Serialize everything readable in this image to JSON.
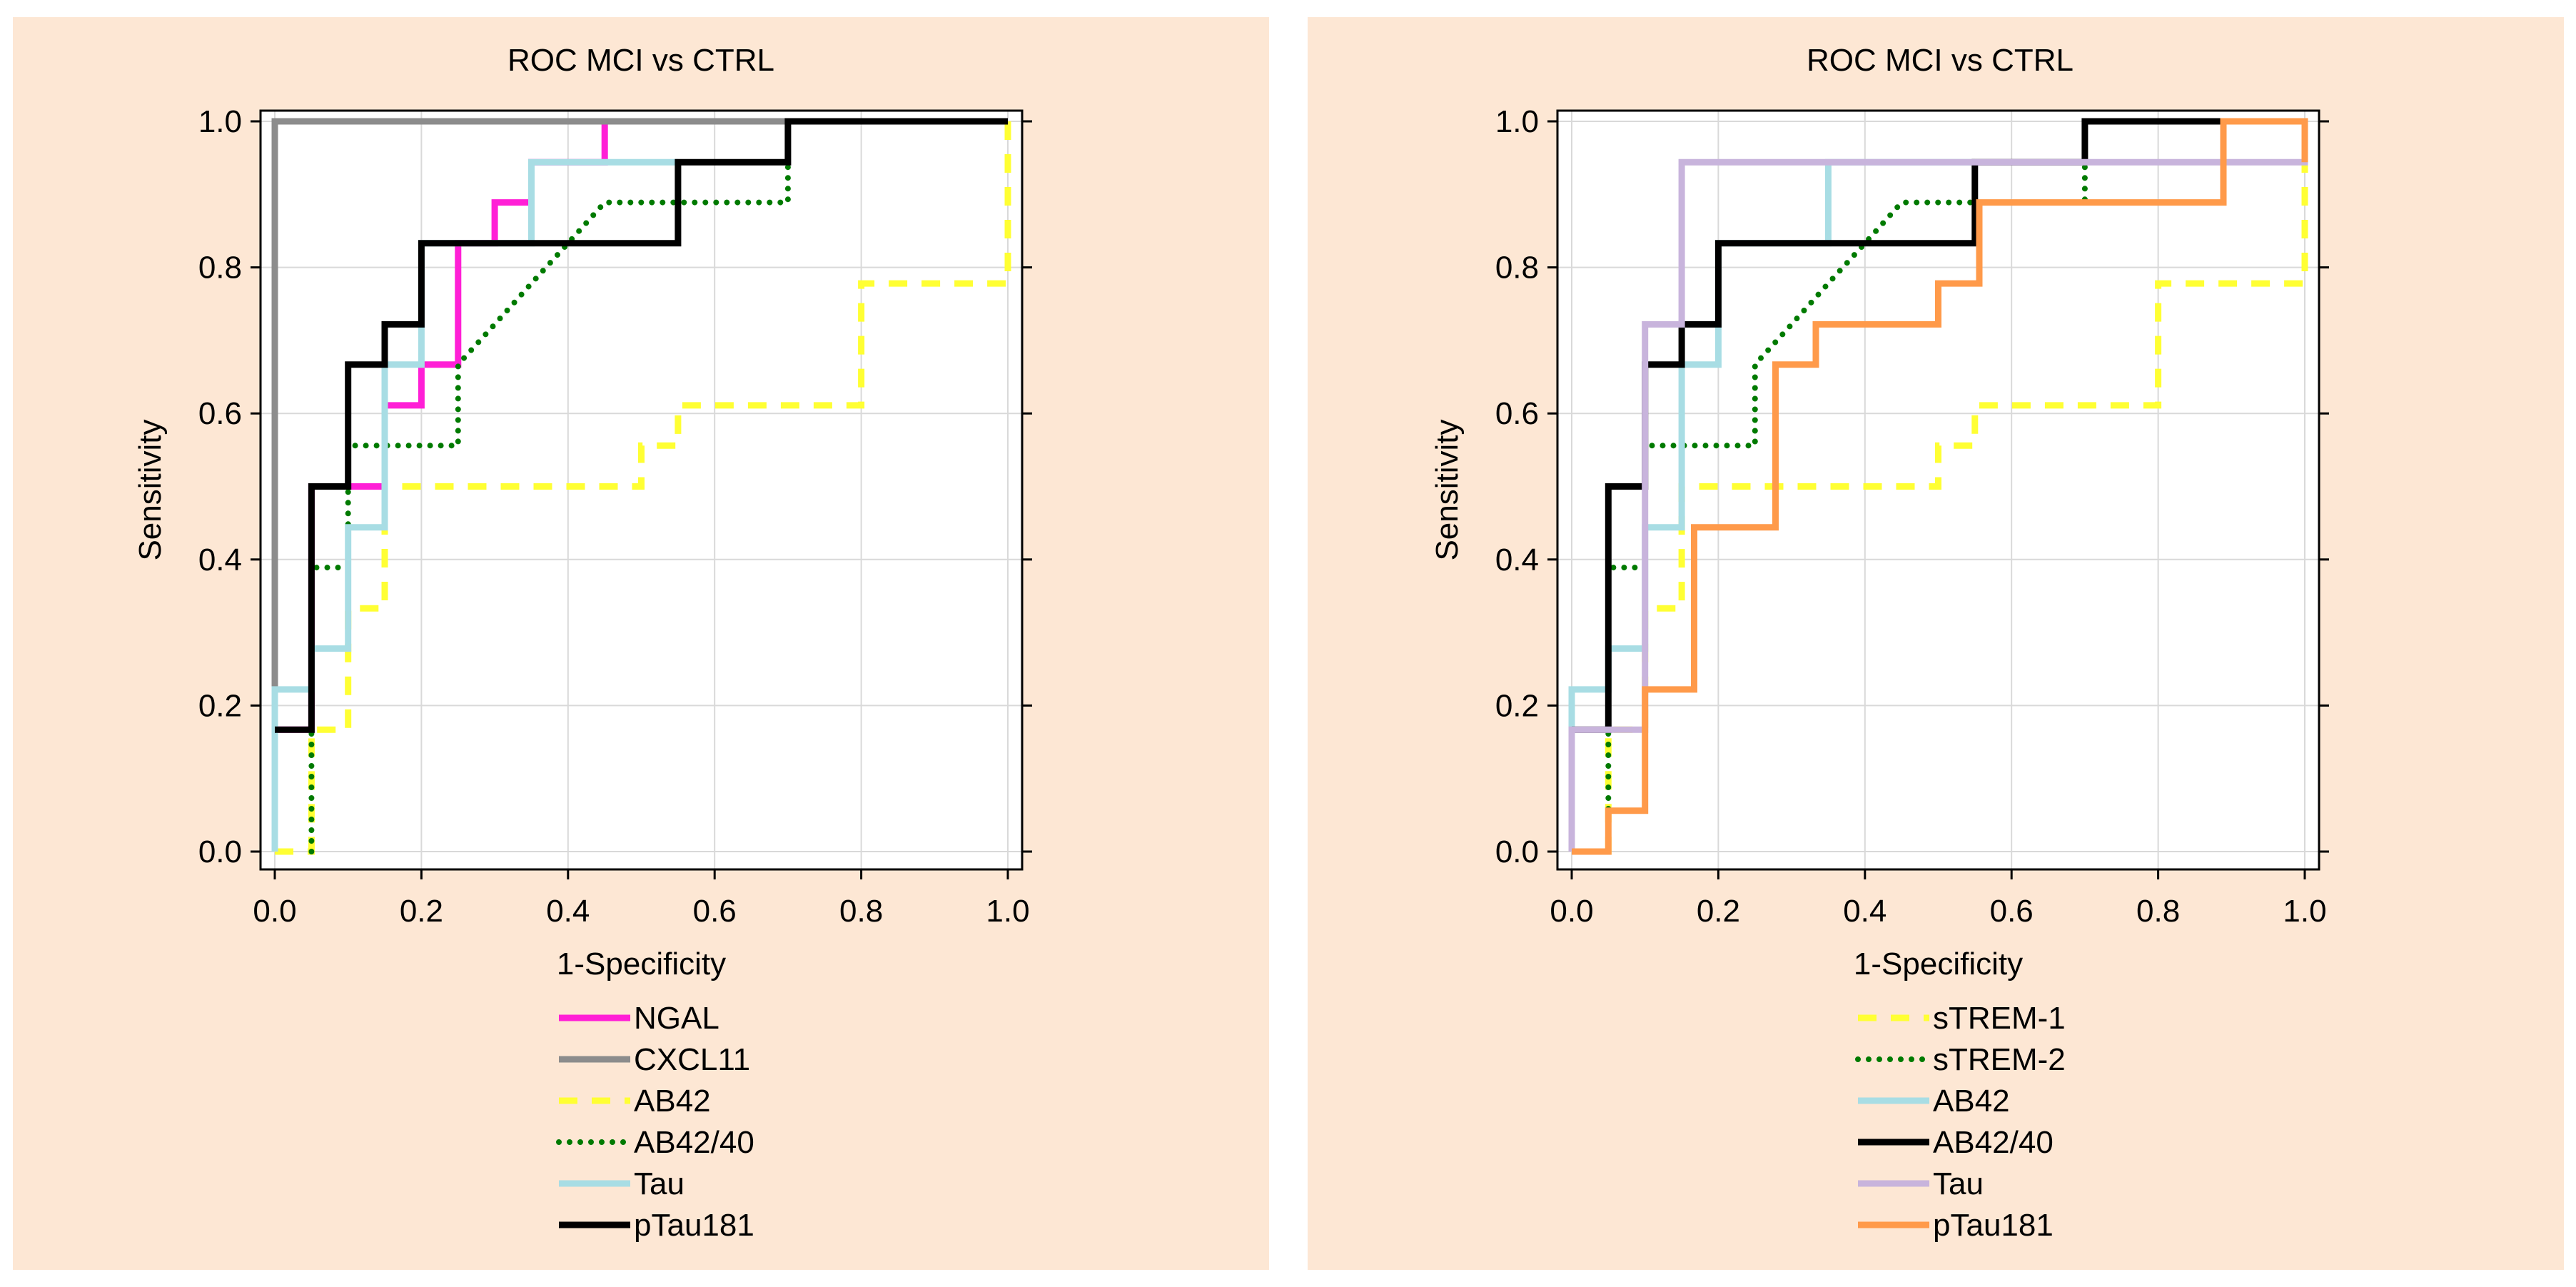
{
  "colors": {
    "panel_bg": "#fde7d4",
    "plot_bg": "#ffffff",
    "grid": "#d9d9d9",
    "frame": "#000000",
    "page_bg": "#ffffff"
  },
  "chart_data": [
    {
      "type": "line",
      "subtype": "roc-step",
      "title": "ROC MCI vs CTRL",
      "xlabel": "1-Specificity",
      "ylabel": "Sensitivity",
      "xlim": [
        0,
        1
      ],
      "ylim": [
        0,
        1
      ],
      "xticks": [
        "0.0",
        "0.2",
        "0.4",
        "0.6",
        "0.8",
        "1.0"
      ],
      "yticks": [
        "0.0",
        "0.2",
        "0.4",
        "0.6",
        "0.8",
        "1.0"
      ],
      "grid": true,
      "legend_position": "bottom-center",
      "series": [
        {
          "name": "NGAL",
          "color": "#ff1fd6",
          "dash": "solid",
          "x": [
            0,
            0.05,
            0.05,
            0.1,
            0.1,
            0.15,
            0.15,
            0.2,
            0.2,
            0.25,
            0.25,
            0.3,
            0.3,
            0.35,
            0.35,
            0.45,
            0.45,
            1.0
          ],
          "y": [
            0.167,
            0.167,
            0.5,
            0.5,
            0.5,
            0.5,
            0.611,
            0.611,
            0.667,
            0.667,
            0.833,
            0.833,
            0.889,
            0.889,
            0.944,
            0.944,
            1.0,
            1.0
          ]
        },
        {
          "name": "CXCL11",
          "color": "#8c8c8c",
          "dash": "solid",
          "x": [
            0,
            0,
            1.0
          ],
          "y": [
            0,
            1.0,
            1.0
          ]
        },
        {
          "name": "AB42",
          "color": "#ffff33",
          "dash": "dashed",
          "x": [
            0,
            0.05,
            0.05,
            0.1,
            0.1,
            0.15,
            0.15,
            0.5,
            0.5,
            0.55,
            0.55,
            0.8,
            0.8,
            1.0,
            1.0
          ],
          "y": [
            0,
            0,
            0.167,
            0.167,
            0.333,
            0.333,
            0.5,
            0.5,
            0.556,
            0.556,
            0.611,
            0.611,
            0.778,
            0.778,
            1.0
          ]
        },
        {
          "name": "AB42/40",
          "color": "#007a00",
          "dash": "dotted",
          "x": [
            0.05,
            0.05,
            0.1,
            0.1,
            0.25,
            0.25,
            0.3,
            0.35,
            0.4,
            0.45,
            0.7,
            0.7
          ],
          "y": [
            0,
            0.389,
            0.389,
            0.556,
            0.556,
            0.667,
            0.722,
            0.778,
            0.833,
            0.889,
            0.889,
            0.944
          ]
        },
        {
          "name": "Tau",
          "color": "#a8dde4",
          "dash": "solid",
          "x": [
            0,
            0,
            0.05,
            0.05,
            0.1,
            0.1,
            0.15,
            0.15,
            0.2,
            0.2,
            0.35,
            0.35,
            0.55,
            0.55
          ],
          "y": [
            0,
            0.222,
            0.222,
            0.278,
            0.278,
            0.444,
            0.444,
            0.667,
            0.667,
            0.833,
            0.833,
            0.944,
            0.944,
            0.944
          ]
        },
        {
          "name": "pTau181",
          "color": "#000000",
          "dash": "solid",
          "x": [
            0,
            0.05,
            0.05,
            0.1,
            0.1,
            0.15,
            0.15,
            0.2,
            0.2,
            0.55,
            0.55,
            0.7,
            0.7,
            1.0
          ],
          "y": [
            0.167,
            0.167,
            0.5,
            0.5,
            0.667,
            0.667,
            0.722,
            0.722,
            0.833,
            0.833,
            0.944,
            0.944,
            1.0,
            1.0
          ]
        }
      ]
    },
    {
      "type": "line",
      "subtype": "roc-step",
      "title": "ROC MCI vs CTRL",
      "xlabel": "1-Specificity",
      "ylabel": "Sensitivity",
      "xlim": [
        0,
        1
      ],
      "ylim": [
        0,
        1
      ],
      "xticks": [
        "0.0",
        "0.2",
        "0.4",
        "0.6",
        "0.8",
        "1.0"
      ],
      "yticks": [
        "0.0",
        "0.2",
        "0.4",
        "0.6",
        "0.8",
        "1.0"
      ],
      "grid": true,
      "legend_position": "bottom-center",
      "series": [
        {
          "name": "sTREM-1",
          "color": "#ffff33",
          "dash": "dashed",
          "x": [
            0,
            0.05,
            0.05,
            0.1,
            0.1,
            0.15,
            0.15,
            0.5,
            0.5,
            0.55,
            0.55,
            0.8,
            0.8,
            1.0,
            1.0
          ],
          "y": [
            0,
            0,
            0.167,
            0.167,
            0.333,
            0.333,
            0.5,
            0.5,
            0.556,
            0.556,
            0.611,
            0.611,
            0.778,
            0.778,
            1.0
          ]
        },
        {
          "name": "sTREM-2",
          "color": "#007a00",
          "dash": "dotted",
          "x": [
            0.05,
            0.05,
            0.1,
            0.1,
            0.25,
            0.25,
            0.3,
            0.35,
            0.4,
            0.45,
            0.7,
            0.7
          ],
          "y": [
            0,
            0.389,
            0.389,
            0.556,
            0.556,
            0.667,
            0.722,
            0.778,
            0.833,
            0.889,
            0.889,
            0.944
          ]
        },
        {
          "name": "AB42",
          "color": "#a8dde4",
          "dash": "solid",
          "x": [
            0,
            0,
            0.05,
            0.05,
            0.1,
            0.1,
            0.15,
            0.15,
            0.2,
            0.2,
            0.35,
            0.35,
            0.55,
            0.55
          ],
          "y": [
            0,
            0.222,
            0.222,
            0.278,
            0.278,
            0.444,
            0.444,
            0.667,
            0.667,
            0.833,
            0.833,
            0.944,
            0.944,
            0.944
          ]
        },
        {
          "name": "AB42/40",
          "color": "#000000",
          "dash": "solid",
          "x": [
            0,
            0.05,
            0.05,
            0.1,
            0.1,
            0.15,
            0.15,
            0.2,
            0.2,
            0.55,
            0.55,
            0.7,
            0.7,
            0.89
          ],
          "y": [
            0.167,
            0.167,
            0.5,
            0.5,
            0.667,
            0.667,
            0.722,
            0.722,
            0.833,
            0.833,
            0.944,
            0.944,
            1.0,
            1.0
          ]
        },
        {
          "name": "Tau",
          "color": "#c8b4dc",
          "dash": "solid",
          "x": [
            0,
            0,
            0.1,
            0.1,
            0.15,
            0.15,
            1.0,
            1.0
          ],
          "y": [
            0,
            0.167,
            0.167,
            0.722,
            0.722,
            0.944,
            0.944,
            1.0
          ]
        },
        {
          "name": "pTau181",
          "color": "#ff9a4a",
          "dash": "solid",
          "x": [
            0,
            0.05,
            0.05,
            0.1,
            0.1,
            0.167,
            0.167,
            0.278,
            0.278,
            0.333,
            0.333,
            0.5,
            0.5,
            0.556,
            0.556,
            0.889,
            0.889,
            1.0,
            1.0
          ],
          "y": [
            0,
            0,
            0.056,
            0.056,
            0.222,
            0.222,
            0.444,
            0.444,
            0.667,
            0.667,
            0.722,
            0.722,
            0.778,
            0.778,
            0.889,
            0.889,
            1.0,
            1.0,
            0.944
          ]
        }
      ]
    }
  ]
}
